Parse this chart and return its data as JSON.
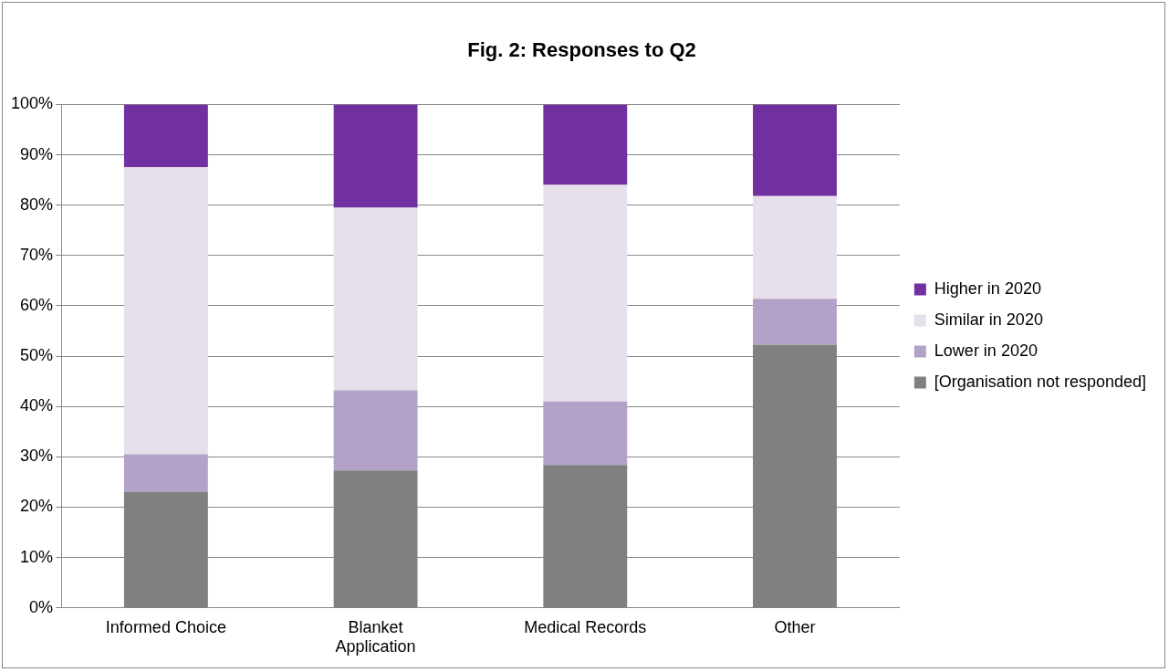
{
  "chart_data": {
    "type": "bar",
    "title": "Fig. 2: Responses to Q2",
    "categories": [
      "Informed Choice",
      "Blanket Application",
      "Medical Records",
      "Other"
    ],
    "stacked": true,
    "series": [
      {
        "name": "[Organisation not responded]",
        "color": "#808080",
        "values": [
          23,
          27.3,
          28.4,
          52.3
        ]
      },
      {
        "name": "Lower in 2020",
        "color": "#b3a2c7",
        "values": [
          7.5,
          15.9,
          12.6,
          9.1
        ]
      },
      {
        "name": "Similar in 2020",
        "color": "#e6e0ec",
        "values": [
          57,
          36.3,
          43,
          20.4
        ]
      },
      {
        "name": "Higher in 2020",
        "color": "#7030a0",
        "values": [
          12.5,
          20.5,
          16,
          18.2
        ]
      }
    ],
    "ylim": [
      0,
      100
    ],
    "yticks": [
      {
        "value": 0,
        "label": "0%"
      },
      {
        "value": 10,
        "label": "10%"
      },
      {
        "value": 20,
        "label": "20%"
      },
      {
        "value": 30,
        "label": "30%"
      },
      {
        "value": 40,
        "label": "40%"
      },
      {
        "value": 50,
        "label": "50%"
      },
      {
        "value": 60,
        "label": "60%"
      },
      {
        "value": 70,
        "label": "70%"
      },
      {
        "value": 80,
        "label": "80%"
      },
      {
        "value": 90,
        "label": "90%"
      },
      {
        "value": 100,
        "label": "100%"
      }
    ],
    "grid": "y",
    "legend": "right"
  }
}
